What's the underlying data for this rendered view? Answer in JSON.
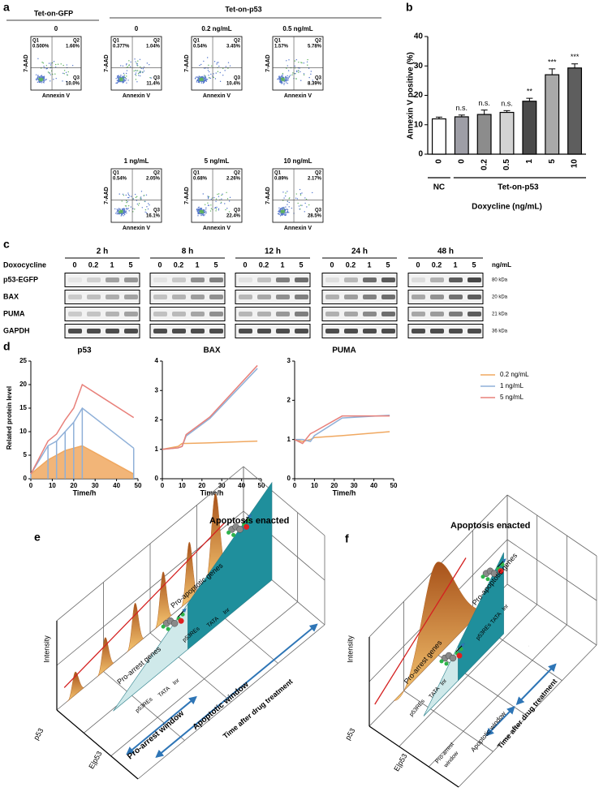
{
  "panels": {
    "a": "a",
    "b": "b",
    "c": "c",
    "d": "d"
  },
  "flow": {
    "group_labels": [
      "Tet-on-GFP",
      "Tet-on-p53"
    ],
    "x_label": "Annexin V",
    "y_label": "7-AAD",
    "plots": [
      {
        "title": "0",
        "q": [
          [
            "Q1",
            "0.500%"
          ],
          [
            "Q2",
            "1.66%"
          ],
          [
            "Q3",
            "10.0%"
          ]
        ]
      },
      {
        "title": "0",
        "q": [
          [
            "Q1",
            "0.377%"
          ],
          [
            "Q2",
            "1.04%"
          ],
          [
            "Q3",
            "11.4%"
          ]
        ]
      },
      {
        "title": "0.2 ng/mL",
        "q": [
          [
            "Q1",
            "0.54%"
          ],
          [
            "Q2",
            "3.45%"
          ],
          [
            "Q3",
            "10.4%"
          ]
        ]
      },
      {
        "title": "0.5 ng/mL",
        "q": [
          [
            "Q1",
            "1.57%"
          ],
          [
            "Q2",
            "5.78%"
          ],
          [
            "Q3",
            "8.39%"
          ]
        ]
      },
      {
        "title": "1 ng/mL",
        "q": [
          [
            "Q1",
            "0.54%"
          ],
          [
            "Q2",
            "2.05%"
          ],
          [
            "Q3",
            "16.1%"
          ]
        ]
      },
      {
        "title": "5 ng/mL",
        "q": [
          [
            "Q1",
            "0.68%"
          ],
          [
            "Q2",
            "2.26%"
          ],
          [
            "Q3",
            "22.4%"
          ]
        ]
      },
      {
        "title": "10 ng/mL",
        "q": [
          [
            "Q1",
            "0.89%"
          ],
          [
            "Q2",
            "2.17%"
          ],
          [
            "Q3",
            "28.5%"
          ]
        ]
      }
    ]
  },
  "blot": {
    "times": [
      "2 h",
      "8 h",
      "12 h",
      "24 h",
      "48 h"
    ],
    "treatment": "Doxocycline",
    "doses": [
      "0",
      "0.2",
      "1",
      "5"
    ],
    "unit": "ng/mL",
    "rows": [
      {
        "name": "p53-EGFP",
        "size": "80 kDa"
      },
      {
        "name": "BAX",
        "size": "20 kDa"
      },
      {
        "name": "PUMA",
        "size": "21 kDa"
      },
      {
        "name": "GAPDH",
        "size": "36 kDa"
      }
    ]
  },
  "chart_data": [
    {
      "type": "bar",
      "ylabel": "Annexin V positive (%)",
      "xlabel": "Doxycline (ng/mL)",
      "groups": [
        "NC",
        "Tet-on-p53"
      ],
      "categories": [
        "0",
        "0",
        "0.2",
        "0.5",
        "1",
        "5",
        "10"
      ],
      "values": [
        12,
        12.7,
        13.5,
        14.2,
        18,
        27,
        29.3
      ],
      "errors": [
        0.6,
        0.6,
        1.5,
        0.6,
        1.0,
        2.0,
        1.4
      ],
      "colors": [
        "#ffffff",
        "#9e9ea6",
        "#8c8c8c",
        "#d3d3d3",
        "#4a4a4a",
        "#a9a9a9",
        "#5e5e5e"
      ],
      "annotations": [
        null,
        "n.s.",
        "n.s.",
        "n.s.",
        "**",
        "***",
        "***"
      ],
      "ylim": [
        0,
        40
      ],
      "yticks": [
        0,
        10,
        20,
        30,
        40
      ]
    },
    {
      "type": "line",
      "title": "p53",
      "ylabel": "Related protein level",
      "xlabel": "Time/h",
      "legend": true,
      "x": [
        0,
        8,
        12,
        16,
        20,
        24,
        48
      ],
      "xlim": [
        0,
        50
      ],
      "xticks": [
        0,
        10,
        20,
        30,
        40,
        50
      ],
      "ylim": [
        0,
        25
      ],
      "yticks": [
        0,
        5,
        10,
        15,
        20,
        25
      ],
      "series": [
        {
          "name": "0.2 ng/mL",
          "color": "#f0a860",
          "values": [
            1,
            4,
            5,
            6,
            6.5,
            7,
            1
          ],
          "fill": true
        },
        {
          "name": "1 ng/mL",
          "color": "#8fb0d8",
          "values": [
            1,
            7,
            8,
            10,
            12,
            15,
            6.5
          ],
          "drop_lines": true
        },
        {
          "name": "5 ng/mL",
          "color": "#e8807a",
          "values": [
            1,
            8,
            9.5,
            12.5,
            15,
            20,
            13
          ]
        }
      ]
    },
    {
      "type": "line",
      "title": "BAX",
      "xlabel": "Time/h",
      "x": [
        0,
        8,
        10,
        12,
        24,
        48
      ],
      "xlim": [
        0,
        50
      ],
      "xticks": [
        0,
        10,
        20,
        30,
        40,
        50
      ],
      "ylim": [
        0,
        4
      ],
      "yticks": [
        0,
        1,
        2,
        3,
        4
      ],
      "series": [
        {
          "name": "0.2 ng/mL",
          "color": "#f0a860",
          "values": [
            1,
            1.1,
            1.2,
            1.2,
            1.22,
            1.28
          ]
        },
        {
          "name": "1 ng/mL",
          "color": "#8fb0d8",
          "values": [
            1,
            1.05,
            1.1,
            1.45,
            2.05,
            3.75
          ]
        },
        {
          "name": "5 ng/mL",
          "color": "#e8807a",
          "values": [
            1,
            1.05,
            1.1,
            1.5,
            2.1,
            3.85
          ]
        }
      ]
    },
    {
      "type": "line",
      "title": "PUMA",
      "xlabel": "Time/h",
      "x": [
        0,
        4,
        8,
        10,
        24,
        48
      ],
      "xlim": [
        0,
        50
      ],
      "xticks": [
        0,
        10,
        20,
        30,
        40,
        50
      ],
      "ylim": [
        0,
        3
      ],
      "yticks": [
        0,
        1,
        2,
        3
      ],
      "series": [
        {
          "name": "0.2 ng/mL",
          "color": "#f0a860",
          "values": [
            1,
            0.95,
            1,
            1.05,
            1.1,
            1.2
          ]
        },
        {
          "name": "1 ng/mL",
          "color": "#8fb0d8",
          "values": [
            1,
            1,
            0.95,
            1.1,
            1.55,
            1.62
          ]
        },
        {
          "name": "5 ng/mL",
          "color": "#e8807a",
          "values": [
            1,
            0.9,
            1.15,
            1.2,
            1.6,
            1.6
          ]
        }
      ]
    }
  ],
  "diagram_e": {
    "label": "e",
    "apoptosis": "Apoptosis enacted",
    "pro_apoptotic": "Pro-apoptotic genes",
    "pro_arrest": "Pro-arrest genes",
    "res": "p53REs",
    "tata": "TATA",
    "inr": "Inr",
    "arrest_window": [
      "Pro-arrest window"
    ],
    "apoptotic_window": "Apoptotic window",
    "time": "Time after drug treatment",
    "intensity": "Intensity",
    "p53": "p53",
    "ep53": "E|p53"
  },
  "diagram_f": {
    "label": "f",
    "apoptosis": "Apoptosis enacted",
    "pro_apoptotic": "Pro-apoptotic genes",
    "pro_arrest": "Pro-arrest genes",
    "res": "p53REs",
    "tata": "TATA",
    "inr": "Inr",
    "arrest_window": [
      "Pro-arrest",
      "window"
    ],
    "apoptotic_window": "Apoptotic window",
    "time": "Time after drug treatment",
    "intensity": "Intensity",
    "p53": "p53",
    "ep53": "E|p53"
  }
}
